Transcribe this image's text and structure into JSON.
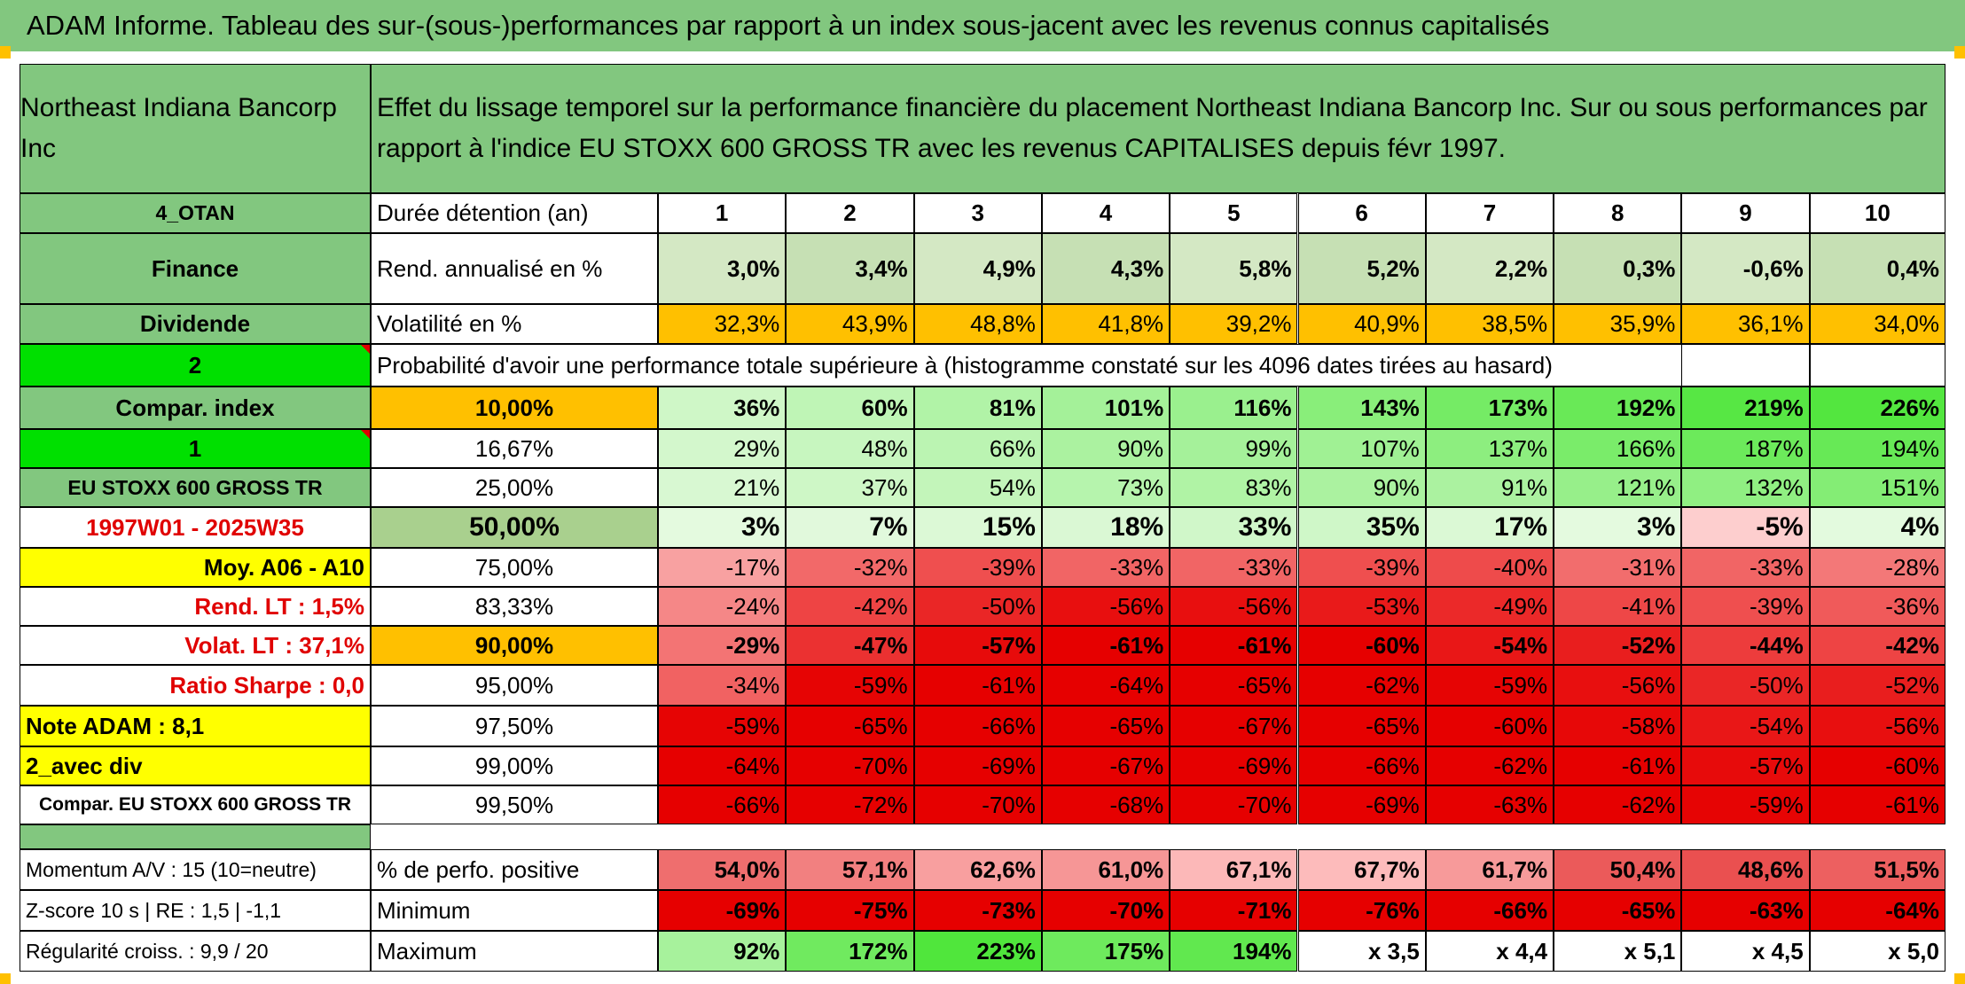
{
  "title": "ADAM Informe. Tableau des sur-(sous-)performances par rapport à un index sous-jacent avec les revenus connus capitalisés",
  "left": {
    "company": "Northeast Indiana Bancorp Inc",
    "code": "4_OTAN",
    "sector": "Finance",
    "dividend": "Dividende",
    "two": "2",
    "compar_index": "Compar. index",
    "one": "1",
    "index_name": "EU STOXX 600 GROSS TR",
    "period": "1997W01 - 2025W35",
    "moy": "Moy. A06 - A10",
    "rend_lt": "Rend. LT :   1,5%",
    "volat_lt": "Volat. LT :   37,1%",
    "sharpe": "Ratio Sharpe :    0,0",
    "note": "Note ADAM : 8,1",
    "avec_div": "2_avec div",
    "compar_full": "Compar. EU STOXX 600 GROSS TR",
    "momentum": "Momentum A/V : 15 (10=neutre)",
    "zscore": "Z-score 10 s | RE : 1,5 | -1,1",
    "regularite": "Régularité croiss. : 9,9 / 20"
  },
  "headline": "Effet du lissage temporel sur la performance financière du placement Northeast Indiana Bancorp Inc. Sur ou sous performances par rapport à l'indice EU STOXX 600 GROSS TR avec les revenus CAPITALISES depuis févr 1997.",
  "labels": {
    "duree": "Durée détention (an)",
    "rend": "Rend. annualisé en %",
    "vol": "Volatilité en %",
    "proba": "Probabilité d'avoir une performance totale supérieure à (histogramme constaté sur les 4096 dates tirées au hasard)",
    "pos": "% de perfo. positive",
    "min": "Minimum",
    "max": "Maximum"
  },
  "years": [
    "1",
    "2",
    "3",
    "4",
    "5",
    "6",
    "7",
    "8",
    "9",
    "10"
  ],
  "rend": [
    "3,0%",
    "3,4%",
    "4,9%",
    "4,3%",
    "5,8%",
    "5,2%",
    "2,2%",
    "0,3%",
    "-0,6%",
    "0,4%"
  ],
  "vol": [
    "32,3%",
    "43,9%",
    "48,8%",
    "41,8%",
    "39,2%",
    "40,9%",
    "38,5%",
    "35,9%",
    "36,1%",
    "34,0%"
  ],
  "percentiles": [
    {
      "p": "10,00%",
      "v": [
        "36%",
        "60%",
        "81%",
        "101%",
        "116%",
        "143%",
        "173%",
        "192%",
        "219%",
        "226%"
      ]
    },
    {
      "p": "16,67%",
      "v": [
        "29%",
        "48%",
        "66%",
        "90%",
        "99%",
        "107%",
        "137%",
        "166%",
        "187%",
        "194%"
      ]
    },
    {
      "p": "25,00%",
      "v": [
        "21%",
        "37%",
        "54%",
        "73%",
        "83%",
        "90%",
        "91%",
        "121%",
        "132%",
        "151%"
      ]
    },
    {
      "p": "50,00%",
      "v": [
        "3%",
        "7%",
        "15%",
        "18%",
        "33%",
        "35%",
        "17%",
        "3%",
        "-5%",
        "4%"
      ]
    },
    {
      "p": "75,00%",
      "v": [
        "-17%",
        "-32%",
        "-39%",
        "-33%",
        "-33%",
        "-39%",
        "-40%",
        "-31%",
        "-33%",
        "-28%"
      ]
    },
    {
      "p": "83,33%",
      "v": [
        "-24%",
        "-42%",
        "-50%",
        "-56%",
        "-56%",
        "-53%",
        "-49%",
        "-41%",
        "-39%",
        "-36%"
      ]
    },
    {
      "p": "90,00%",
      "v": [
        "-29%",
        "-47%",
        "-57%",
        "-61%",
        "-61%",
        "-60%",
        "-54%",
        "-52%",
        "-44%",
        "-42%"
      ]
    },
    {
      "p": "95,00%",
      "v": [
        "-34%",
        "-59%",
        "-61%",
        "-64%",
        "-65%",
        "-62%",
        "-59%",
        "-56%",
        "-50%",
        "-52%"
      ]
    },
    {
      "p": "97,50%",
      "v": [
        "-59%",
        "-65%",
        "-66%",
        "-65%",
        "-67%",
        "-65%",
        "-60%",
        "-58%",
        "-54%",
        "-56%"
      ]
    },
    {
      "p": "99,00%",
      "v": [
        "-64%",
        "-70%",
        "-69%",
        "-67%",
        "-69%",
        "-66%",
        "-62%",
        "-61%",
        "-57%",
        "-60%"
      ]
    },
    {
      "p": "99,50%",
      "v": [
        "-66%",
        "-72%",
        "-70%",
        "-68%",
        "-70%",
        "-69%",
        "-63%",
        "-62%",
        "-59%",
        "-61%"
      ]
    }
  ],
  "pos": [
    "54,0%",
    "57,1%",
    "62,6%",
    "61,0%",
    "67,1%",
    "67,7%",
    "61,7%",
    "50,4%",
    "48,6%",
    "51,5%"
  ],
  "min": [
    "-69%",
    "-75%",
    "-73%",
    "-70%",
    "-71%",
    "-76%",
    "-66%",
    "-65%",
    "-63%",
    "-64%"
  ],
  "max": [
    "92%",
    "172%",
    "223%",
    "175%",
    "194%",
    "x 3,5",
    "x 4,4",
    "x 5,1",
    "x 4,5",
    "x 5,0"
  ],
  "colors": {
    "header_green": "#82c77f",
    "left_green": "#82c77f",
    "bright_green": "#00e000",
    "yellow": "#ffff00",
    "orange": "#ffc000",
    "light_green_fill": "#c6e0b4",
    "red_text": "#e00000"
  }
}
